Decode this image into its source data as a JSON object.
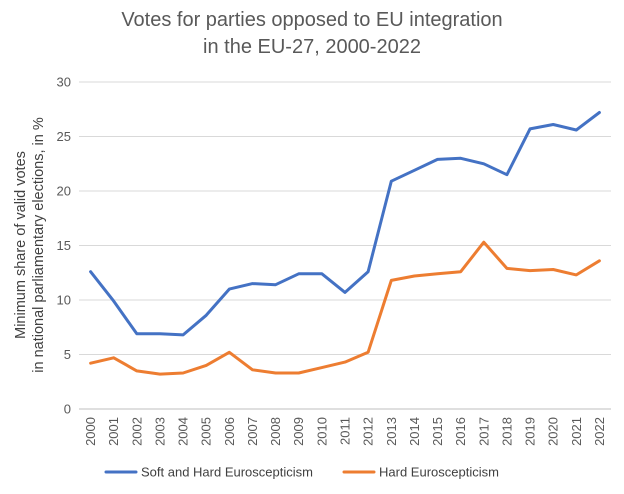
{
  "chart_data": {
    "type": "line",
    "title": [
      "Votes for parties opposed to EU integration",
      "in the EU-27, 2000-2022"
    ],
    "ylabel": [
      "Minimum share of valid votes",
      "in national parliamentary elections, in %"
    ],
    "xlabel": "",
    "ylim": [
      0,
      30
    ],
    "yticks": [
      0,
      5,
      10,
      15,
      20,
      25,
      30
    ],
    "grid": "horizontal",
    "legend_position": "bottom",
    "categories": [
      "2000",
      "2001",
      "2002",
      "2003",
      "2004",
      "2005",
      "2006",
      "2007",
      "2008",
      "2009",
      "2010",
      "2011",
      "2012",
      "2013",
      "2014",
      "2015",
      "2016",
      "2017",
      "2018",
      "2019",
      "2020",
      "2021",
      "2022"
    ],
    "series": [
      {
        "name": "Soft and Hard Euroscepticism",
        "color": "#4472C4",
        "values": [
          12.6,
          9.9,
          6.9,
          6.9,
          6.8,
          8.6,
          11.0,
          11.5,
          11.4,
          12.4,
          12.4,
          10.7,
          12.6,
          20.9,
          21.9,
          22.9,
          23.0,
          22.5,
          21.5,
          25.7,
          26.1,
          25.6,
          27.2
        ]
      },
      {
        "name": "Hard Euroscepticism",
        "color": "#ED7D31",
        "values": [
          4.2,
          4.7,
          3.5,
          3.2,
          3.3,
          4.0,
          5.2,
          3.6,
          3.3,
          3.3,
          3.8,
          4.3,
          5.2,
          11.8,
          12.2,
          12.4,
          12.6,
          15.3,
          12.9,
          12.7,
          12.8,
          12.3,
          13.6
        ]
      }
    ]
  }
}
